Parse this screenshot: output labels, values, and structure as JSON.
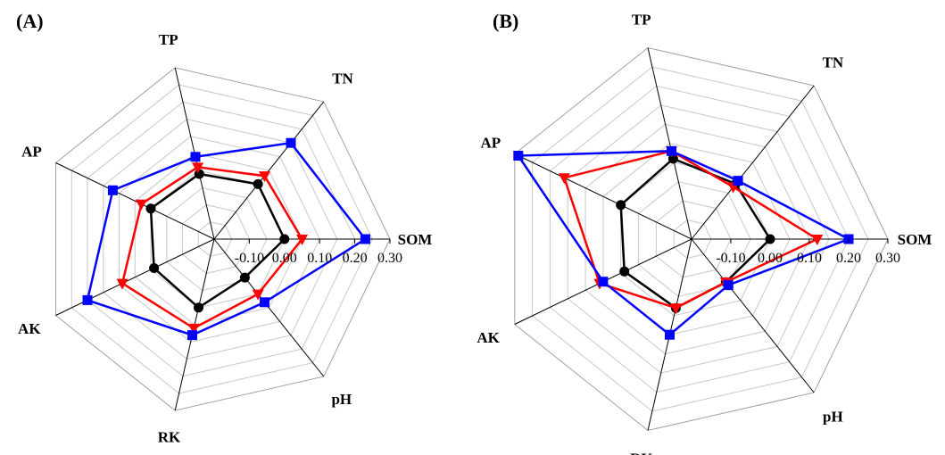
{
  "chart_data": [
    {
      "type": "radar",
      "panel": "(A)",
      "axes": [
        "SOM",
        "TN",
        "TP",
        "AP",
        "AK",
        "RK",
        "pH"
      ],
      "ticks": [
        "-0.10",
        "0.00",
        "0.10",
        "0.20",
        "0.30"
      ],
      "rlim": [
        -0.2,
        0.3
      ],
      "grid": true,
      "series": [
        {
          "color": "#000000",
          "marker": "circle",
          "values": [
            0.0,
            0.0,
            -0.01,
            0.0,
            -0.01,
            0.0,
            -0.06
          ]
        },
        {
          "color": "#ff0000",
          "marker": "triangle-down",
          "values": [
            0.05,
            0.03,
            0.01,
            0.03,
            0.09,
            0.06,
            0.0
          ]
        },
        {
          "color": "#0000ff",
          "marker": "square",
          "values": [
            0.23,
            0.15,
            0.04,
            0.12,
            0.2,
            0.08,
            0.03
          ]
        }
      ]
    },
    {
      "type": "radar",
      "panel": "(B)",
      "axes": [
        "SOM",
        "TN",
        "TP",
        "AP",
        "AK",
        "RK",
        "pH"
      ],
      "ticks": [
        "-0.10",
        "0.00",
        "0.10",
        "0.20",
        "0.30"
      ],
      "rlim": [
        -0.2,
        0.3
      ],
      "grid": true,
      "series": [
        {
          "color": "#000000",
          "marker": "circle",
          "values": [
            0.0,
            -0.02,
            0.01,
            0.0,
            -0.01,
            -0.02,
            -0.06
          ]
        },
        {
          "color": "#ff0000",
          "marker": "triangle-down",
          "values": [
            0.12,
            -0.03,
            0.03,
            0.16,
            0.06,
            -0.02,
            -0.06
          ]
        },
        {
          "color": "#0000ff",
          "marker": "square",
          "values": [
            0.2,
            -0.01,
            0.03,
            0.29,
            0.05,
            0.05,
            -0.05
          ]
        }
      ]
    }
  ]
}
